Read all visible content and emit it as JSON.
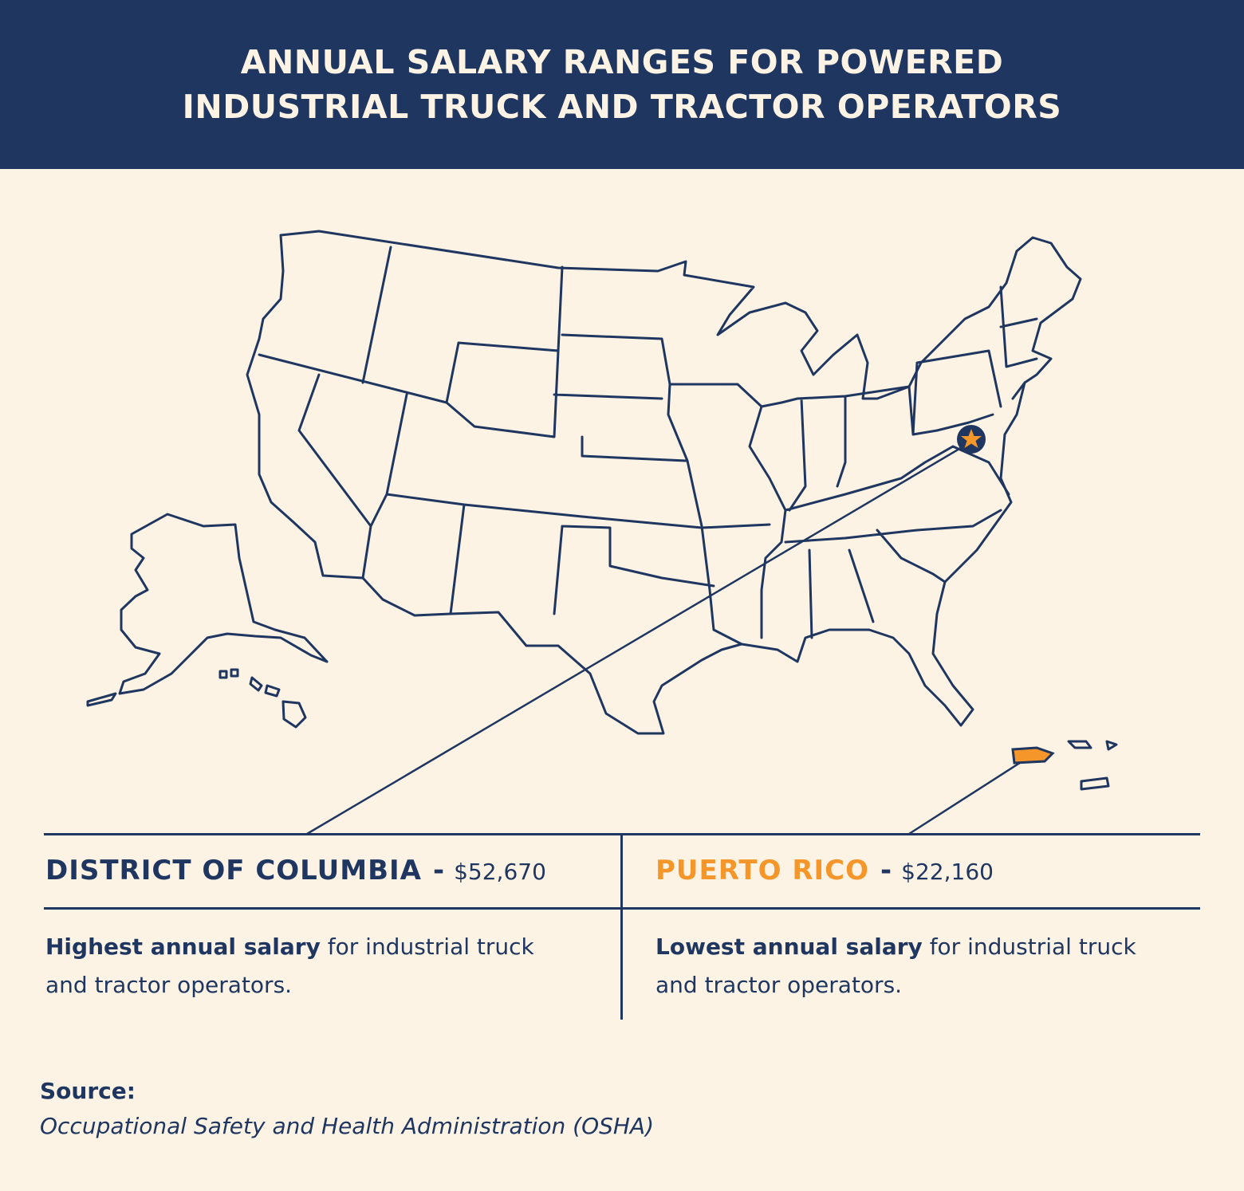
{
  "header": {
    "title_line1": "ANNUAL SALARY RANGES FOR POWERED",
    "title_line2": "INDUSTRIAL TRUCK AND TRACTOR OPERATORS"
  },
  "map": {
    "highlight_marker": "star-icon",
    "highlight_color": "#f5962a",
    "outline_color": "#1e3660"
  },
  "highest": {
    "name": "DISTRICT OF COLUMBIA",
    "separator": "-",
    "value": "$52,670",
    "desc_bold": "Highest annual salary",
    "desc_rest": " for industrial truck and tractor operators.",
    "color": "#1e3660"
  },
  "lowest": {
    "name": "PUERTO RICO",
    "separator": "-",
    "value": "$22,160",
    "desc_bold": "Lowest annual salary",
    "desc_rest": " for industrial truck and tractor operators.",
    "color": "#f5962a"
  },
  "source": {
    "label": "Source:",
    "text": "Occupational Safety and Health Administration (OSHA)"
  }
}
